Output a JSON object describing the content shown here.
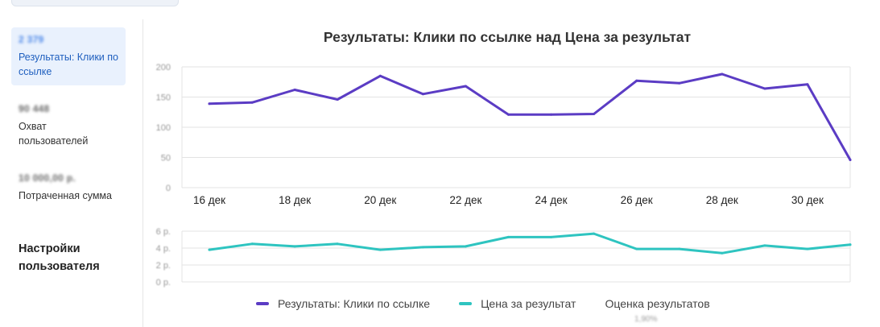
{
  "sidebar": {
    "metrics": [
      {
        "value": "2 379",
        "label": "Результаты: Клики по ссылке"
      },
      {
        "value": "90 448",
        "label": "Охват пользователей"
      },
      {
        "value": "10 000,00 р.",
        "label": "Потраченная сумма"
      }
    ],
    "settings_label": "Настройки пользователя"
  },
  "chart_data": {
    "title": "Результаты: Клики по ссылке над Цена за результат",
    "type": "line",
    "x_ticks": [
      "16 дек",
      "18 дек",
      "20 дек",
      "22 дек",
      "24 дек",
      "26 дек",
      "28 дек",
      "30 дек"
    ],
    "upper": {
      "ylim": [
        0,
        200
      ],
      "yticks": [
        "200",
        "150",
        "100",
        "50",
        "0"
      ],
      "series": {
        "name": "Результаты: Клики по ссылке",
        "color": "#5b3cc4",
        "points": [
          {
            "x": "16 дек",
            "y": 139
          },
          {
            "x": "17 дек",
            "y": 141
          },
          {
            "x": "18 дек",
            "y": 162
          },
          {
            "x": "19 дек",
            "y": 146
          },
          {
            "x": "20 дек",
            "y": 185
          },
          {
            "x": "21 дек",
            "y": 155
          },
          {
            "x": "22 дек",
            "y": 168
          },
          {
            "x": "23 дек",
            "y": 121
          },
          {
            "x": "24 дек",
            "y": 121
          },
          {
            "x": "25 дек",
            "y": 122
          },
          {
            "x": "26 дек",
            "y": 177
          },
          {
            "x": "27 дек",
            "y": 173
          },
          {
            "x": "28 дек",
            "y": 188
          },
          {
            "x": "29 дек",
            "y": 164
          },
          {
            "x": "30 дек",
            "y": 171
          },
          {
            "x": "31 дек",
            "y": 46
          }
        ]
      }
    },
    "lower": {
      "ylim": [
        0,
        6
      ],
      "yticks": [
        "6 р.",
        "4 р.",
        "2 р.",
        "0 р."
      ],
      "series": {
        "name": "Цена за результат",
        "color": "#2ec4c0",
        "points": [
          {
            "x": "16 дек",
            "y": 3.8
          },
          {
            "x": "17 дек",
            "y": 4.5
          },
          {
            "x": "18 дек",
            "y": 4.2
          },
          {
            "x": "19 дек",
            "y": 4.5
          },
          {
            "x": "20 дек",
            "y": 3.8
          },
          {
            "x": "21 дек",
            "y": 4.1
          },
          {
            "x": "22 дек",
            "y": 4.2
          },
          {
            "x": "23 дек",
            "y": 5.3
          },
          {
            "x": "24 дек",
            "y": 5.3
          },
          {
            "x": "25 дек",
            "y": 5.7
          },
          {
            "x": "26 дек",
            "y": 3.9
          },
          {
            "x": "27 дек",
            "y": 3.9
          },
          {
            "x": "28 дек",
            "y": 3.4
          },
          {
            "x": "29 дек",
            "y": 4.3
          },
          {
            "x": "30 дек",
            "y": 3.9
          },
          {
            "x": "31 дек",
            "y": 4.4
          }
        ]
      }
    },
    "legend": [
      {
        "label": "Результаты: Клики по ссылке",
        "color": "#5b3cc4"
      },
      {
        "label": "Цена за результат",
        "color": "#2ec4c0"
      },
      {
        "label": "Оценка результатов",
        "sub": "1,90%"
      }
    ],
    "legend_position": "bottom",
    "grid": true
  }
}
